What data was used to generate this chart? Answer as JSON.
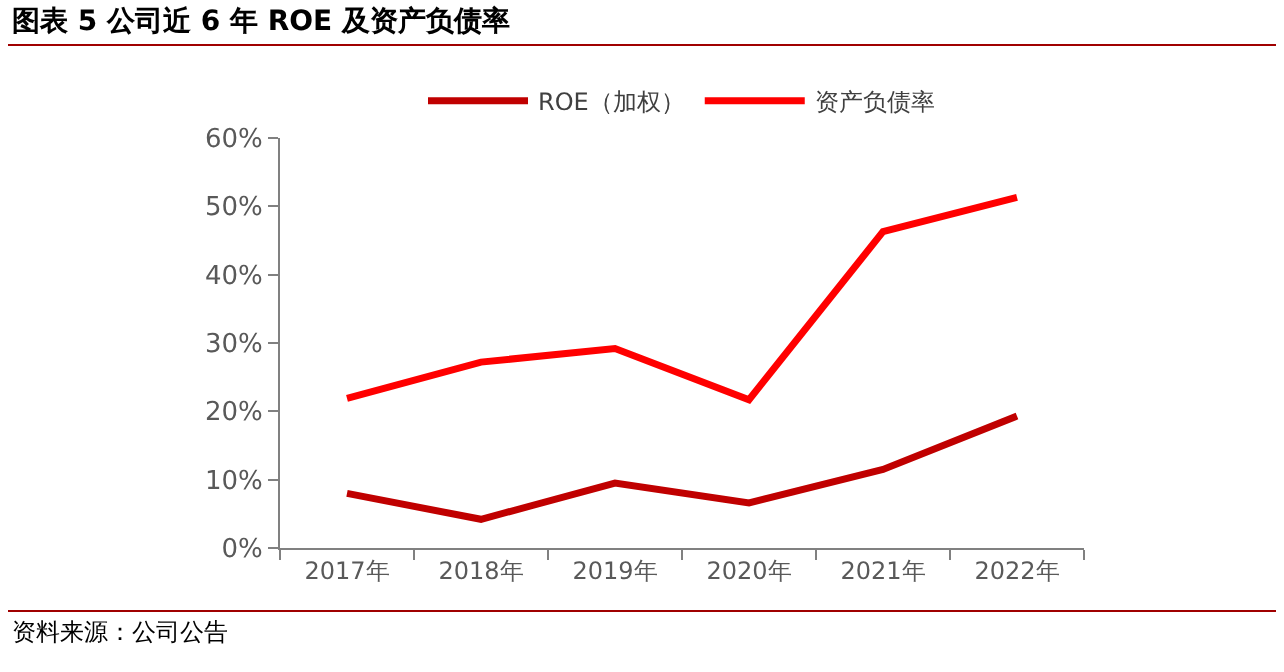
{
  "chart_data": {
    "type": "line",
    "title": "图表 5 公司近 6 年 ROE 及资产负债率",
    "categories": [
      "2017年",
      "2018年",
      "2019年",
      "2020年",
      "2021年",
      "2022年"
    ],
    "series": [
      {
        "name": "ROE（加权）",
        "color": "#c00000",
        "values": [
          8.0,
          4.2,
          9.5,
          6.6,
          11.5,
          19.3
        ]
      },
      {
        "name": "资产负债率",
        "color": "#ff0000",
        "values": [
          21.9,
          27.2,
          29.2,
          21.7,
          46.3,
          51.3
        ]
      }
    ],
    "ylim": [
      0,
      60
    ],
    "yticks": [
      {
        "value": 0,
        "label": "0%"
      },
      {
        "value": 10,
        "label": "10%"
      },
      {
        "value": 20,
        "label": "20%"
      },
      {
        "value": 30,
        "label": "30%"
      },
      {
        "value": 40,
        "label": "40%"
      },
      {
        "value": 50,
        "label": "50%"
      },
      {
        "value": 60,
        "label": "60%"
      }
    ],
    "grid": false,
    "legend": "top",
    "marker": "none",
    "line_style": "solid",
    "annotations": [
      "资料来源：公司公告"
    ]
  }
}
